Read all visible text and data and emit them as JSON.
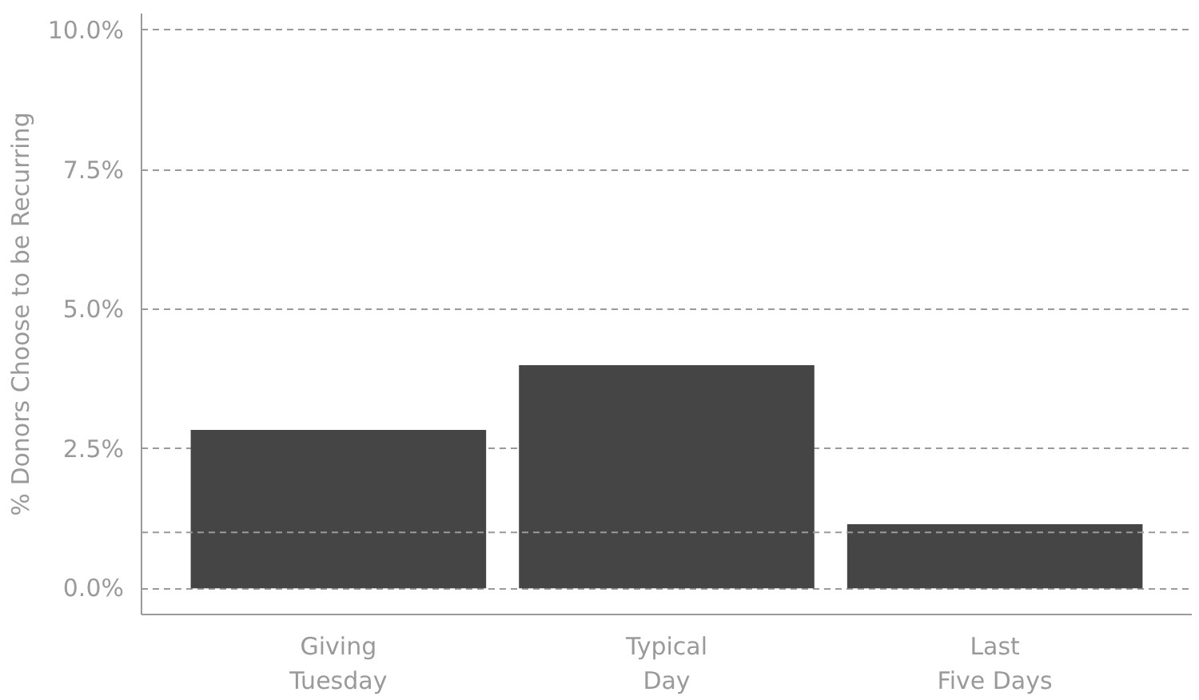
{
  "chart_data": {
    "type": "bar",
    "ylabel": "% Donors Choose to be Recurring",
    "categories": [
      "Giving\nTuesday",
      "Typical\nDay",
      "Last\nFive Days"
    ],
    "values": [
      2.84,
      4.0,
      1.15
    ],
    "color": "#454545",
    "ylim": [
      -0.47,
      10.3
    ],
    "yticks": [
      {
        "value": 0,
        "label": "0.0%"
      },
      {
        "value": 2.5,
        "label": "2.5%"
      },
      {
        "value": 5,
        "label": "5.0%"
      },
      {
        "value": 7.5,
        "label": "7.5%"
      },
      {
        "value": 10,
        "label": "10.0%"
      }
    ],
    "ref_lines": [
      {
        "axis": "y",
        "value": 1.0,
        "label": null,
        "line_style": "dashed"
      }
    ],
    "grid": "y"
  }
}
